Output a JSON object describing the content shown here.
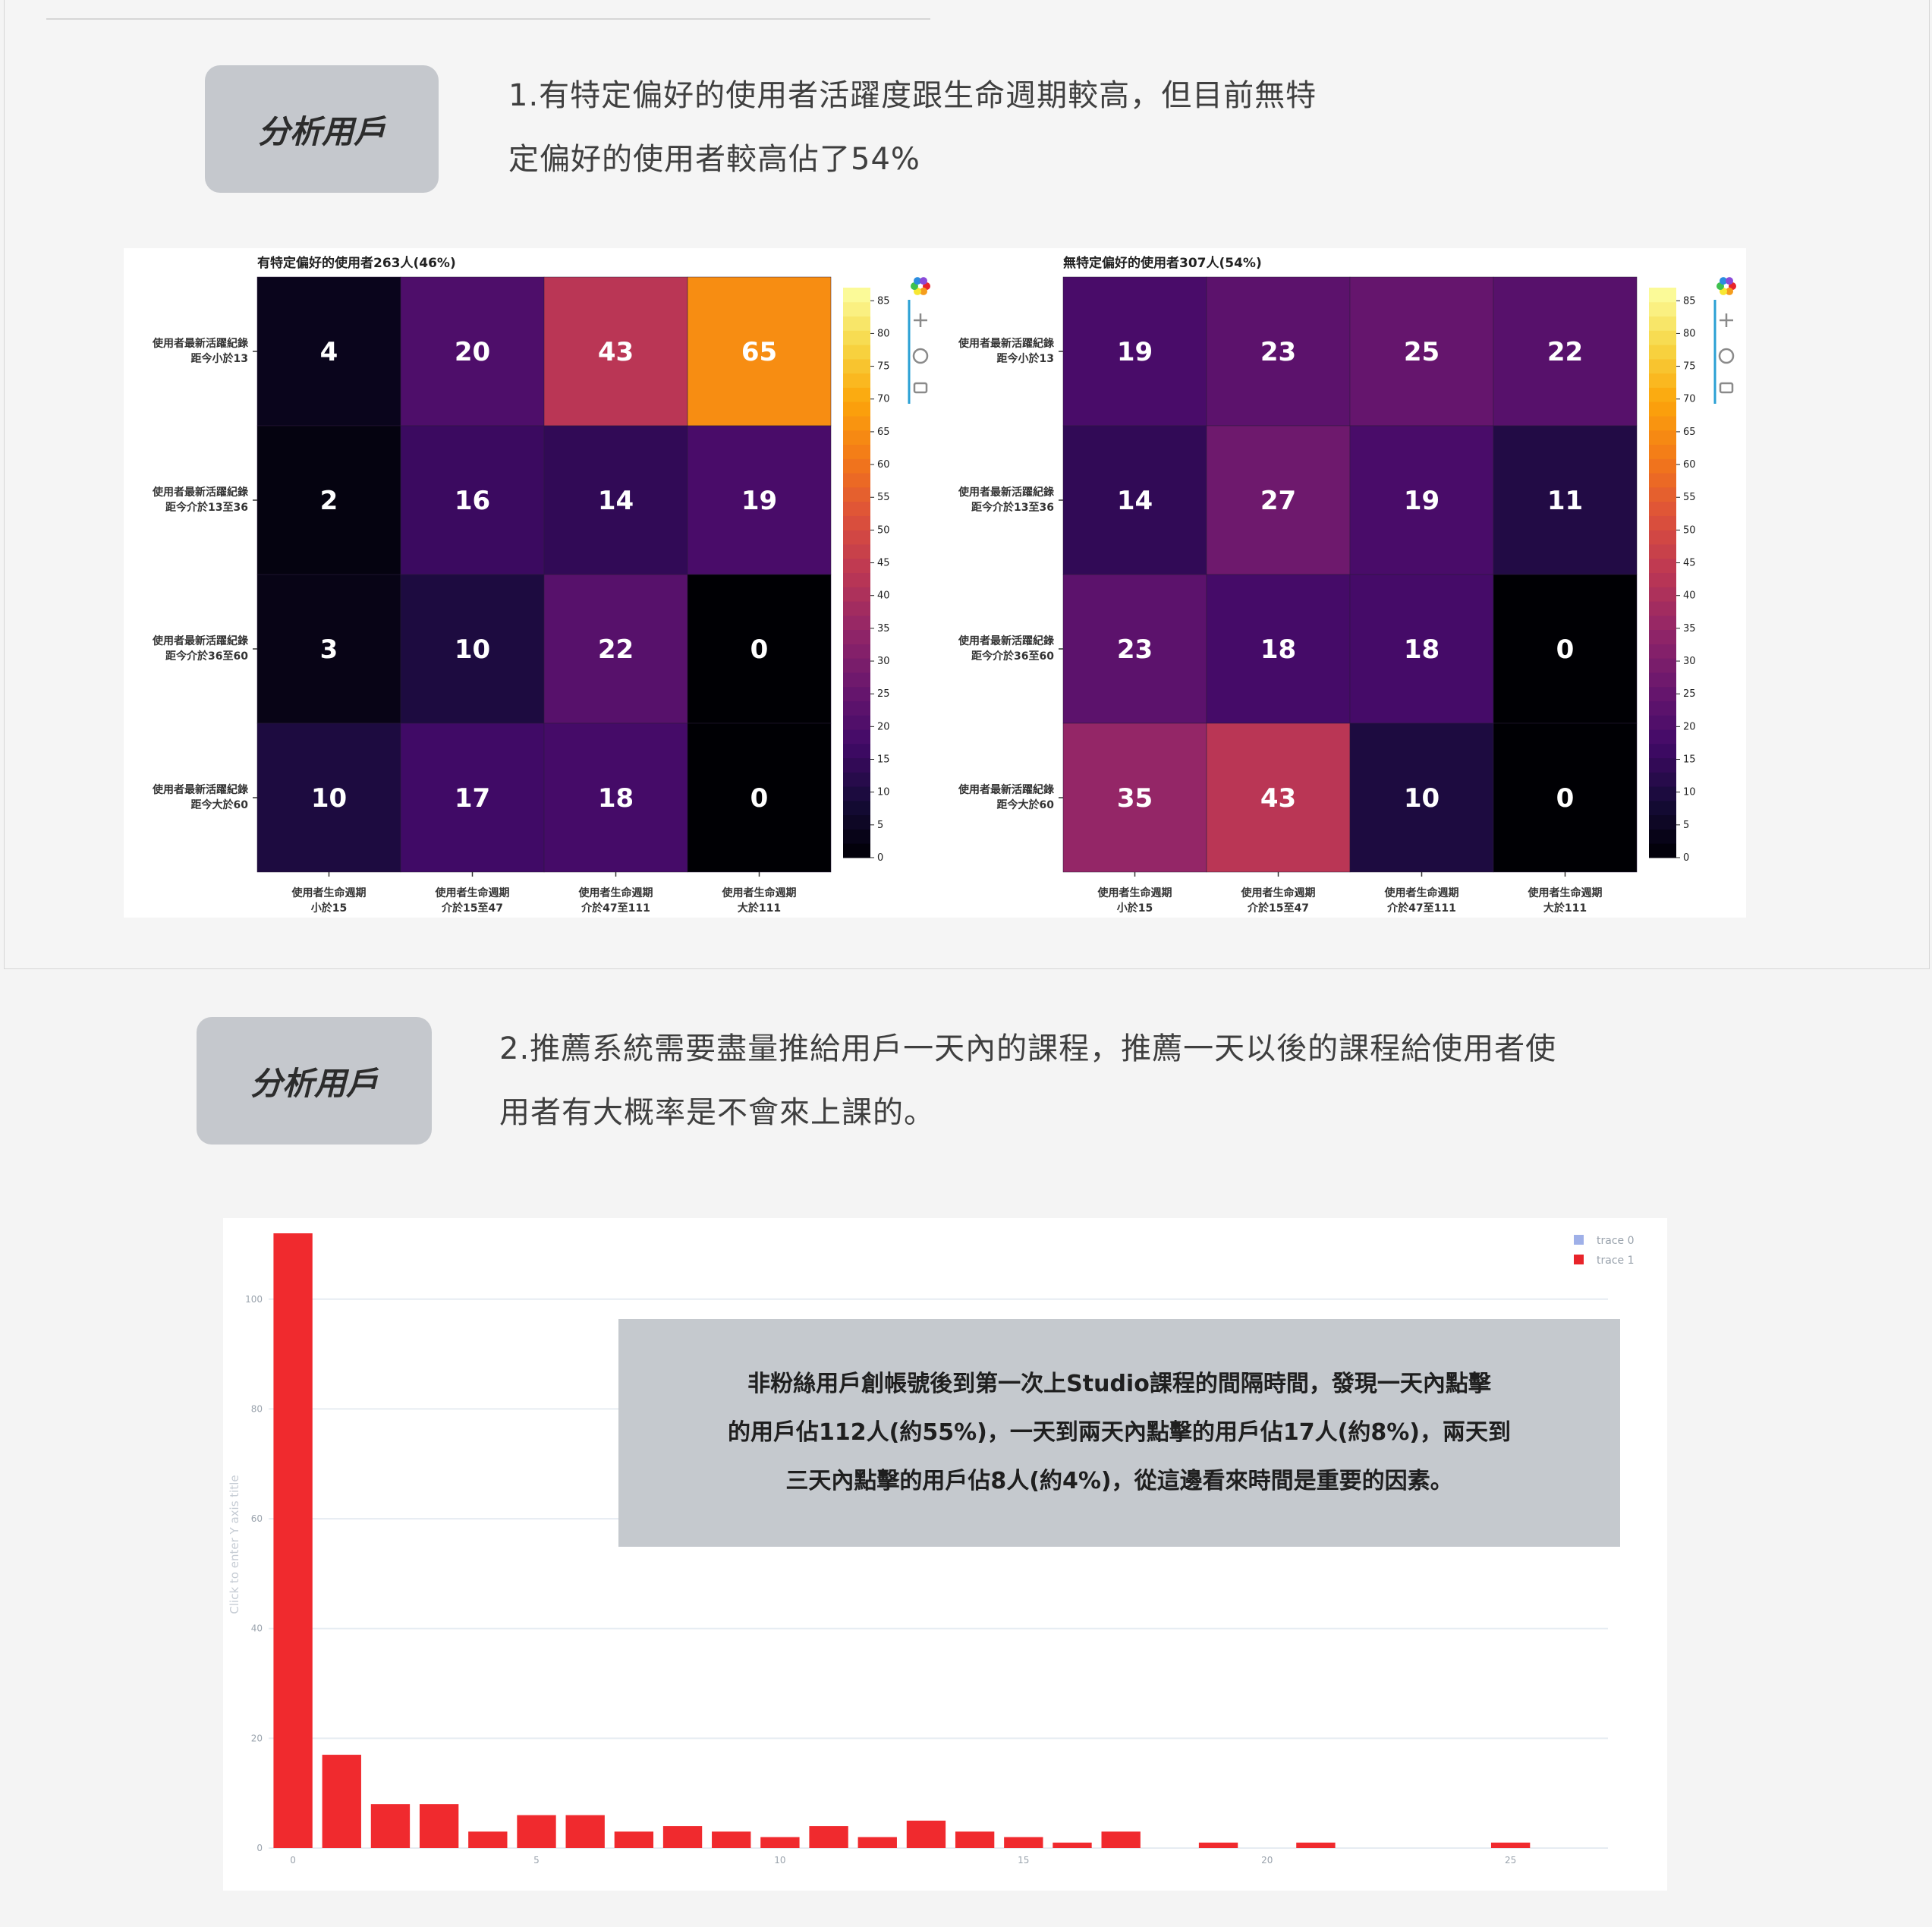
{
  "section1": {
    "tag_label": "分析用戶",
    "para_lines": [
      "1.有特定偏好的使用者活躍度跟生命週期較高，但目前無特",
      "定偏好的使用者較高佔了54%"
    ]
  },
  "section2": {
    "tag_label": "分析用戶",
    "para_lines": [
      "2.推薦系統需要盡量推給用戶一天內的課程，推薦一天以後的課程給使用者使",
      "用者有大概率是不會來上課的。"
    ]
  },
  "note_lines": [
    "非粉絲用戶創帳號後到第一次上Studio課程的間隔時間，發現一天內點擊",
    "的用戶佔112人(約55%)，一天到兩天內點擊的用戶佔17人(約8%)，兩天到",
    "三天內點擊的用戶佔8人(約4%)，從這邊看來時間是重要的因素。"
  ],
  "chart_data": [
    {
      "type": "heatmap",
      "title": "有特定偏好的使用者263人(46%)",
      "y_categories": [
        [
          "使用者最新活躍紀錄",
          "距今小於13"
        ],
        [
          "使用者最新活躍紀錄",
          "距今介於13至36"
        ],
        [
          "使用者最新活躍紀錄",
          "距今介於36至60"
        ],
        [
          "使用者最新活躍紀錄",
          "距今大於60"
        ]
      ],
      "x_categories": [
        [
          "使用者生命週期",
          "小於15"
        ],
        [
          "使用者生命週期",
          "介於15至47"
        ],
        [
          "使用者生命週期",
          "介於47至111"
        ],
        [
          "使用者生命週期",
          "大於111"
        ]
      ],
      "values": [
        [
          4,
          20,
          43,
          65
        ],
        [
          2,
          16,
          14,
          19
        ],
        [
          3,
          10,
          22,
          0
        ],
        [
          10,
          17,
          18,
          0
        ]
      ],
      "colorbar_ticks": [
        0,
        5,
        10,
        15,
        20,
        25,
        30,
        35,
        40,
        45,
        50,
        55,
        60,
        65,
        70,
        75,
        80,
        85
      ],
      "zrange": [
        0,
        87
      ],
      "colorscale": "inferno"
    },
    {
      "type": "heatmap",
      "title": "無特定偏好的使用者307人(54%)",
      "y_categories": [
        [
          "使用者最新活躍紀錄",
          "距今小於13"
        ],
        [
          "使用者最新活躍紀錄",
          "距今介於13至36"
        ],
        [
          "使用者最新活躍紀錄",
          "距今介於36至60"
        ],
        [
          "使用者最新活躍紀錄",
          "距今大於60"
        ]
      ],
      "x_categories": [
        [
          "使用者生命週期",
          "小於15"
        ],
        [
          "使用者生命週期",
          "介於15至47"
        ],
        [
          "使用者生命週期",
          "介於47至111"
        ],
        [
          "使用者生命週期",
          "大於111"
        ]
      ],
      "values": [
        [
          19,
          23,
          25,
          22
        ],
        [
          14,
          27,
          19,
          11
        ],
        [
          23,
          18,
          18,
          0
        ],
        [
          35,
          43,
          10,
          0
        ]
      ],
      "colorbar_ticks": [
        0,
        5,
        10,
        15,
        20,
        25,
        30,
        35,
        40,
        45,
        50,
        55,
        60,
        65,
        70,
        75,
        80,
        85
      ],
      "zrange": [
        0,
        87
      ],
      "colorscale": "inferno"
    },
    {
      "type": "bar",
      "legend": [
        "trace 0",
        "trace 1"
      ],
      "legend_colors": [
        "#9fb0e8",
        "#e8242a"
      ],
      "ylabel": "Click to enter Y axis title",
      "x": [
        0,
        1,
        2,
        3,
        4,
        5,
        6,
        7,
        8,
        9,
        10,
        11,
        12,
        13,
        14,
        15,
        16,
        17,
        19,
        21,
        25
      ],
      "values": [
        112,
        17,
        8,
        8,
        3,
        6,
        6,
        3,
        4,
        3,
        2,
        4,
        2,
        5,
        3,
        2,
        1,
        3,
        1,
        1,
        1
      ],
      "bar_color": "#f02a2e",
      "xticks": [
        0,
        5,
        10,
        15,
        20,
        25
      ],
      "yticks": [
        0,
        20,
        40,
        60,
        80,
        100
      ],
      "xlim": [
        -0.5,
        27
      ],
      "ylim": [
        0,
        112
      ]
    }
  ]
}
